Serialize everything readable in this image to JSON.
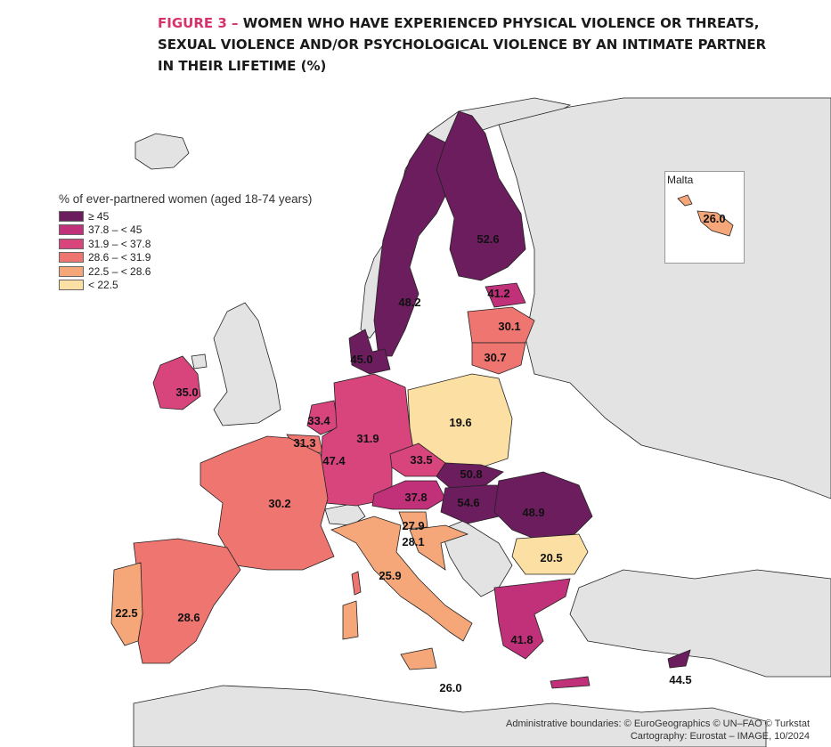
{
  "title": {
    "figure_label": "FIGURE 3 – ",
    "line1": "WOMEN WHO HAVE EXPERIENCED PHYSICAL VIOLENCE OR THREATS,",
    "line2": "SEXUAL VIOLENCE AND/OR PSYCHOLOGICAL VIOLENCE BY AN INTIMATE PARTNER",
    "line3": "IN THEIR LIFETIME (%)"
  },
  "legend": {
    "title": "% of ever-partnered women (aged 18-74 years)",
    "classes": [
      {
        "label": "≥ 45",
        "color": "#6b1d5e"
      },
      {
        "label": "37.8 – < 45",
        "color": "#c0317a"
      },
      {
        "label": "31.9 – < 37.8",
        "color": "#d8457c"
      },
      {
        "label": "28.6 – < 31.9",
        "color": "#ef7570"
      },
      {
        "label": "22.5 – < 28.6",
        "color": "#f5a77a"
      },
      {
        "label": "< 22.5",
        "color": "#fbdfa3"
      }
    ]
  },
  "colors": {
    "sea": "#ffffff",
    "non_eu": "#e3e3e3",
    "border": "#222222"
  },
  "values": {
    "finland": "52.6",
    "sweden": "48.2",
    "estonia": "41.2",
    "latvia": "30.1",
    "lithuania": "30.7",
    "denmark": "45.0",
    "ireland": "35.0",
    "netherlands": "33.4",
    "belgium": "31.3",
    "luxembourg": "47.4",
    "germany": "31.9",
    "poland": "19.6",
    "czechia": "33.5",
    "slovakia": "50.8",
    "austria": "37.8",
    "hungary": "54.6",
    "romania": "48.9",
    "slovenia": "27.9",
    "croatia": "28.1",
    "france": "30.2",
    "italy": "25.9",
    "bulgaria": "20.5",
    "portugal": "22.5",
    "spain": "28.6",
    "greece": "41.8",
    "cyprus": "44.5",
    "malta_main": "26.0",
    "malta_inset": "26.0"
  },
  "inset": {
    "label": "Malta"
  },
  "footer": {
    "line1": "Administrative boundaries: © EuroGeographics © UN–FAO © Turkstat",
    "line2": "Cartography: Eurostat – IMAGE, 10/2024"
  }
}
